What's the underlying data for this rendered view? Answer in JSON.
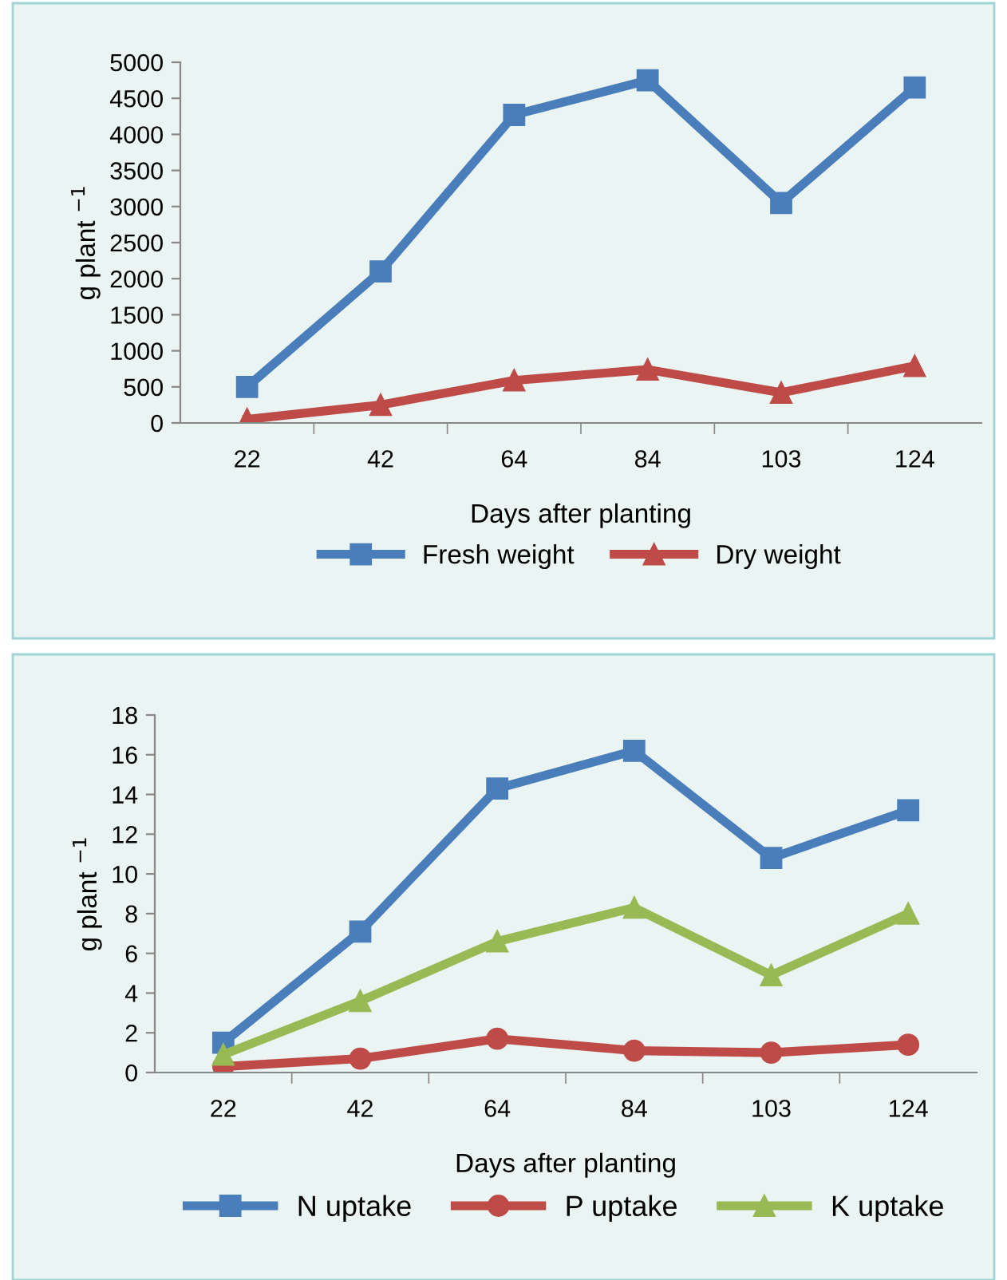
{
  "chart_data": [
    {
      "type": "line",
      "ylabel": "g plant $^{−1}$",
      "xlabel": "Days after planting",
      "categories": [
        "22",
        "42",
        "64",
        "84",
        "103",
        "124"
      ],
      "ylim": [
        0,
        5000
      ],
      "yticks": [
        0,
        500,
        1000,
        1500,
        2000,
        2500,
        3000,
        3500,
        4000,
        4500,
        5000
      ],
      "grid": false,
      "legend": "bottom",
      "series": [
        {
          "name": "Fresh weight",
          "color": "#4a7ebb",
          "marker": "square",
          "values": [
            500,
            2100,
            4270,
            4750,
            3050,
            4650
          ]
        },
        {
          "name": "Dry weight",
          "color": "#be4b48",
          "marker": "triangle",
          "values": [
            50,
            250,
            590,
            740,
            420,
            790
          ]
        }
      ]
    },
    {
      "type": "line",
      "ylabel": "g plant $^{−1}$",
      "xlabel": "Days after planting",
      "categories": [
        "22",
        "42",
        "64",
        "84",
        "103",
        "124"
      ],
      "ylim": [
        0,
        18
      ],
      "yticks": [
        0,
        2,
        4,
        6,
        8,
        10,
        12,
        14,
        16,
        18
      ],
      "grid": false,
      "legend": "bottom",
      "series": [
        {
          "name": "N uptake",
          "color": "#4a7ebb",
          "marker": "square",
          "values": [
            1.5,
            7.1,
            14.3,
            16.2,
            10.8,
            13.2
          ]
        },
        {
          "name": "P uptake",
          "color": "#be4b48",
          "marker": "circle",
          "values": [
            0.3,
            0.7,
            1.7,
            1.1,
            1.0,
            1.4
          ]
        },
        {
          "name": "K uptake",
          "color": "#98b954",
          "marker": "triangle",
          "values": [
            0.9,
            3.6,
            6.6,
            8.3,
            4.9,
            8.0
          ]
        }
      ]
    }
  ]
}
